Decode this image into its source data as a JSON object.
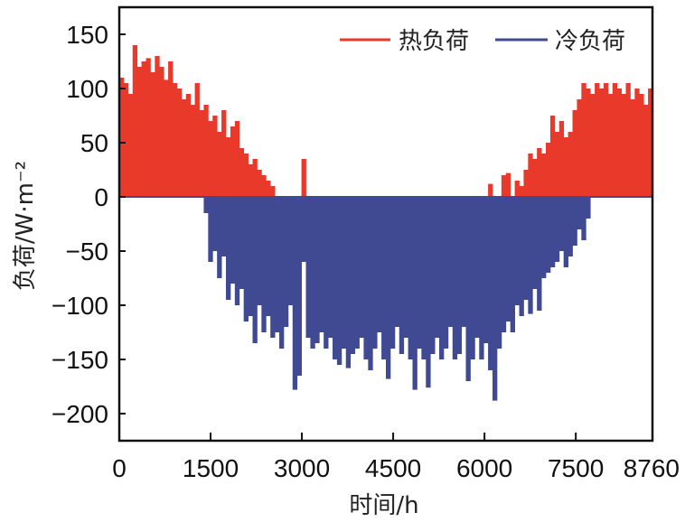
{
  "chart_data": {
    "type": "bar",
    "title": "",
    "xlabel": "时间/h",
    "ylabel": "负荷/W·m⁻²",
    "xlim": [
      0,
      8760
    ],
    "ylim": [
      -225,
      175
    ],
    "xticks": [
      "0",
      "1500",
      "3000",
      "4500",
      "6000",
      "7500",
      "8760"
    ],
    "xtick_values": [
      0,
      1500,
      3000,
      4500,
      6000,
      7500,
      8760
    ],
    "yticks": [
      "150",
      "100",
      "50",
      "0",
      "−50",
      "−100",
      "−150",
      "−200"
    ],
    "ytick_values": [
      150,
      100,
      50,
      0,
      -50,
      -100,
      -150,
      -200
    ],
    "grid": false,
    "legend_position": "top-right",
    "bin_hours": 73,
    "series": [
      {
        "name": "热负荷",
        "color": "#e8392b",
        "values": [
          110,
          105,
          95,
          140,
          120,
          125,
          128,
          115,
          130,
          120,
          108,
          125,
          105,
          100,
          90,
          95,
          85,
          105,
          80,
          85,
          70,
          75,
          60,
          80,
          55,
          65,
          70,
          45,
          40,
          30,
          35,
          25,
          20,
          15,
          10,
          0,
          0,
          0,
          0,
          0,
          0,
          35,
          0,
          0,
          0,
          0,
          0,
          0,
          0,
          0,
          0,
          0,
          0,
          0,
          0,
          0,
          0,
          0,
          0,
          0,
          0,
          0,
          0,
          0,
          0,
          0,
          0,
          0,
          0,
          0,
          0,
          0,
          0,
          0,
          0,
          0,
          0,
          0,
          0,
          0,
          0,
          0,
          0,
          12,
          0,
          0,
          20,
          22,
          0,
          15,
          10,
          25,
          40,
          35,
          45,
          40,
          50,
          75,
          60,
          70,
          55,
          60,
          80,
          90,
          105,
          100,
          95,
          105,
          100,
          105,
          95,
          105,
          100,
          95,
          105,
          90,
          100,
          95,
          85,
          100
        ]
      },
      {
        "name": "冷负荷",
        "color": "#3f4a93",
        "values": [
          0,
          0,
          0,
          0,
          0,
          0,
          0,
          0,
          0,
          0,
          0,
          0,
          0,
          0,
          0,
          0,
          0,
          0,
          0,
          -15,
          -60,
          -50,
          -75,
          -55,
          -95,
          -80,
          -100,
          -85,
          -115,
          -110,
          -135,
          -100,
          -125,
          -110,
          -130,
          -125,
          -140,
          -120,
          -100,
          -178,
          -165,
          -60,
          -130,
          -140,
          -135,
          -125,
          -140,
          -130,
          -150,
          -155,
          -140,
          -158,
          -145,
          -140,
          -130,
          -150,
          -160,
          -140,
          -125,
          -150,
          -168,
          -140,
          -120,
          -145,
          -130,
          -150,
          -178,
          -140,
          -150,
          -176,
          -145,
          -130,
          -150,
          -140,
          -120,
          -150,
          -145,
          -120,
          -170,
          -150,
          -130,
          -150,
          -135,
          -160,
          -188,
          -140,
          -125,
          -115,
          -125,
          -100,
          -110,
          -95,
          -108,
          -85,
          -105,
          -75,
          -70,
          -65,
          -60,
          -50,
          -65,
          -55,
          -45,
          -30,
          -40,
          -20,
          0,
          0,
          0,
          0,
          0,
          0,
          0,
          0,
          0,
          0,
          0,
          0,
          0,
          0
        ]
      }
    ]
  }
}
